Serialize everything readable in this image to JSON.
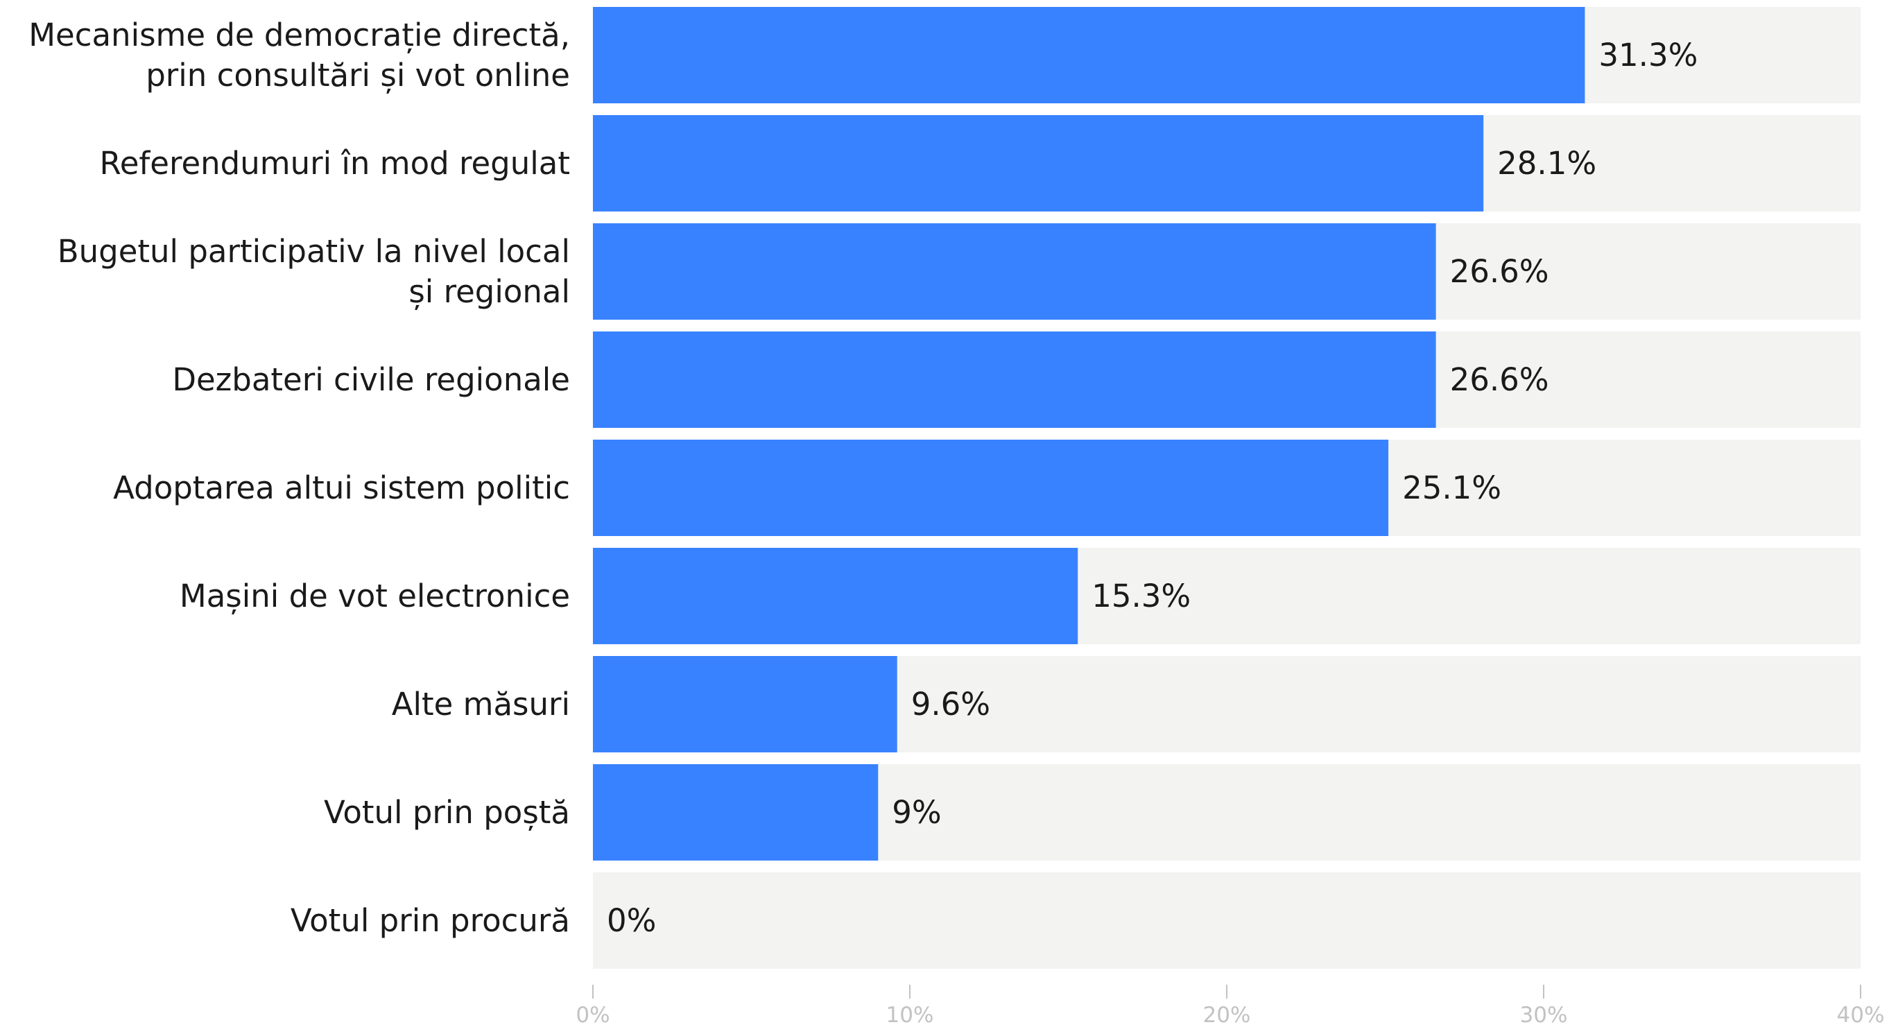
{
  "chart_data": {
    "type": "bar",
    "orientation": "horizontal",
    "title": "",
    "xlabel": "",
    "ylabel": "",
    "xlim": [
      0,
      40
    ],
    "grid": false,
    "legend": "none",
    "colors": {
      "bar": "#3882FF",
      "track": "#F3F3F2",
      "tick": "#C2C2C2",
      "text": "#1A1A1A"
    },
    "categories": [
      [
        "Mecanisme de democrație directă,",
        "prin consultări și vot online"
      ],
      [
        "Referendumuri în mod regulat"
      ],
      [
        "Bugetul participativ la nivel local",
        "și regional"
      ],
      [
        "Dezbateri civile regionale"
      ],
      [
        "Adoptarea altui sistem politic"
      ],
      [
        "Mașini de vot electronice"
      ],
      [
        "Alte măsuri"
      ],
      [
        "Votul prin poștă"
      ],
      [
        "Votul prin procură"
      ]
    ],
    "values": [
      31.3,
      28.1,
      26.6,
      26.6,
      25.1,
      15.3,
      9.6,
      9,
      0
    ],
    "value_labels": [
      "31.3%",
      "28.1%",
      "26.6%",
      "26.6%",
      "25.1%",
      "15.3%",
      "9.6%",
      "9%",
      "0%"
    ],
    "x_ticks": [
      0,
      10,
      20,
      30,
      40
    ],
    "x_tick_labels": [
      "0%",
      "10%",
      "20%",
      "30%",
      "40%"
    ]
  }
}
